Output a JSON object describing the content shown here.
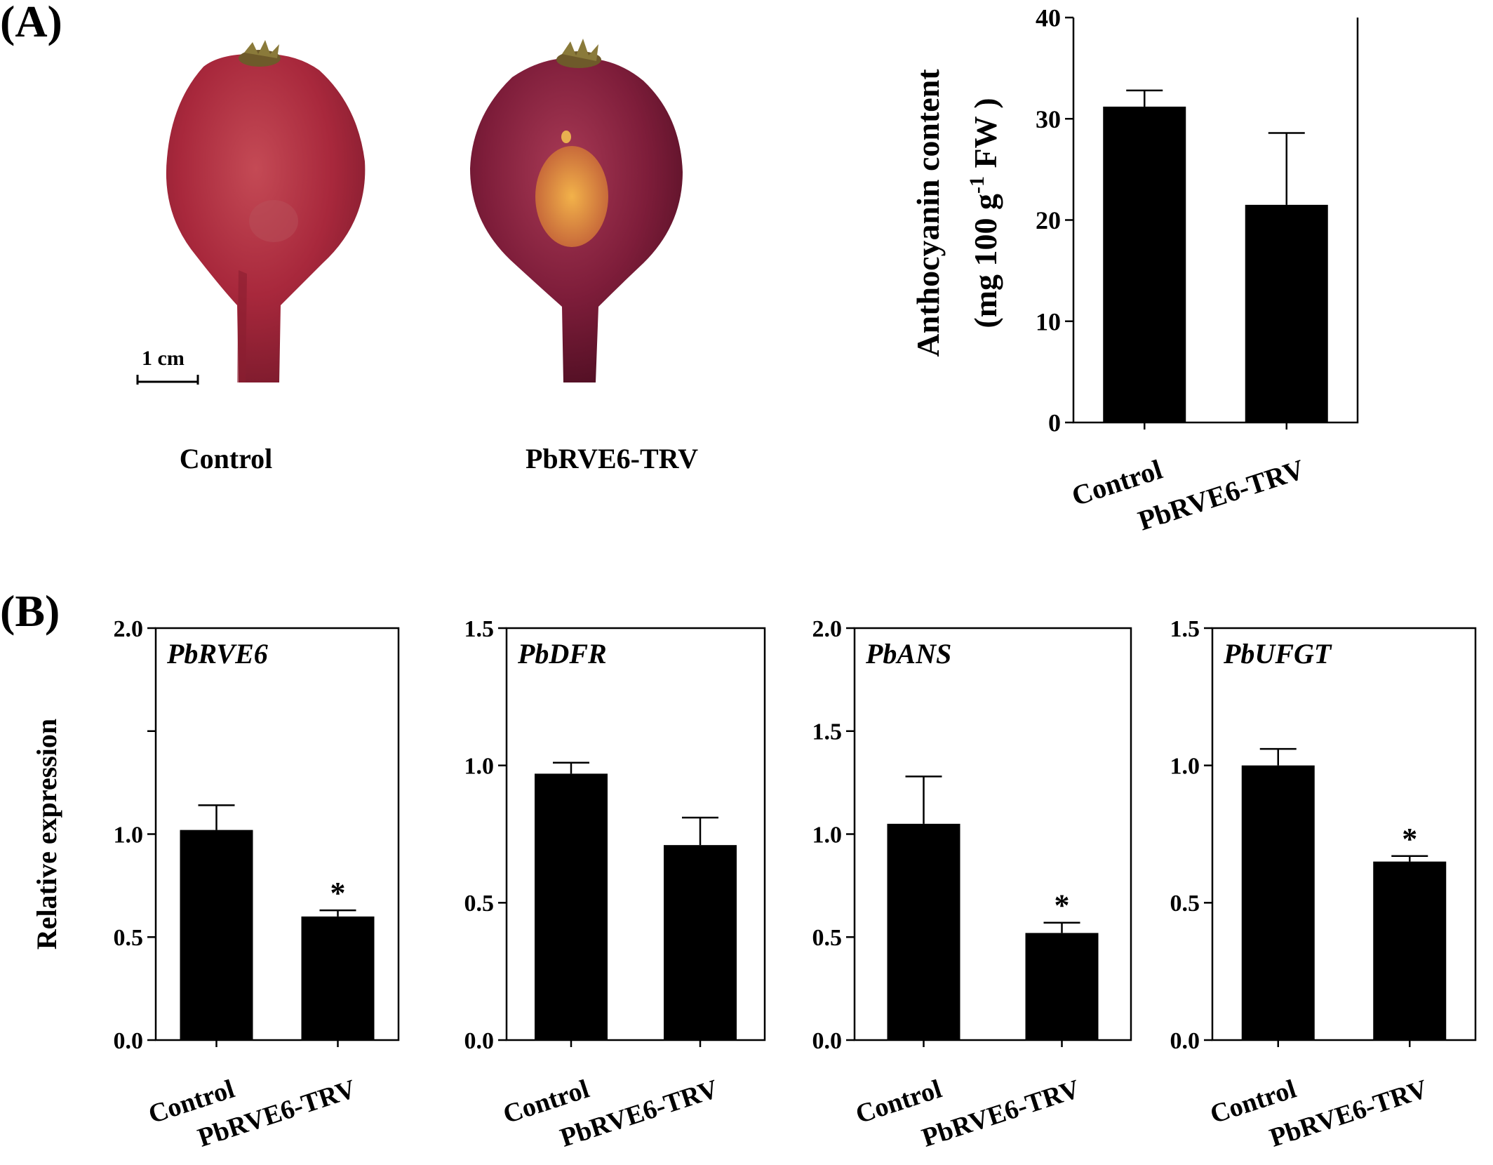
{
  "panelA": {
    "label": "(A)",
    "photos": [
      {
        "caption": "Control"
      },
      {
        "caption": "PbRVE6-TRV"
      }
    ],
    "scale_bar": "1 cm"
  },
  "panelB": {
    "label": "(B)"
  },
  "colors": {
    "bar": "#000000",
    "fruit": "#a8283c",
    "fruit_dark": "#6e1230",
    "spot": "#e8a040"
  },
  "chart_data": [
    {
      "id": "anthocyanin",
      "type": "bar",
      "categories": [
        "Control",
        "PbRVE6-TRV"
      ],
      "values": [
        31.2,
        21.5
      ],
      "errors": [
        1.6,
        7.1
      ],
      "ylabel_line1": "Anthocyanin content",
      "ylabel_line2": "(mg 100 g",
      "ylabel_sup": "-1",
      "ylabel_line2_end": " FW )",
      "ylim": [
        0,
        40
      ],
      "yticks": [
        0,
        10,
        20,
        30,
        40
      ],
      "tick_labels": [
        "0",
        "10",
        "20",
        "30",
        "40"
      ],
      "sig": [
        "",
        ""
      ]
    },
    {
      "id": "PbRVE6",
      "type": "bar",
      "title": "PbRVE6",
      "categories": [
        "Control",
        "PbRVE6-TRV"
      ],
      "values": [
        1.02,
        0.6
      ],
      "errors": [
        0.12,
        0.03
      ],
      "ylabel": "Relative expression",
      "ylim": [
        0,
        2.0
      ],
      "yticks": [
        0,
        0.5,
        1.0,
        1.5,
        2.0
      ],
      "tick_labels": [
        "0.0",
        "0.5",
        "1.0",
        "",
        "2.0"
      ],
      "sig": [
        "",
        "*"
      ]
    },
    {
      "id": "PbDFR",
      "type": "bar",
      "title": "PbDFR",
      "categories": [
        "Control",
        "PbRVE6-TRV"
      ],
      "values": [
        0.97,
        0.71
      ],
      "errors": [
        0.04,
        0.1
      ],
      "ylim": [
        0,
        1.5
      ],
      "yticks": [
        0,
        0.5,
        1.0,
        1.5
      ],
      "tick_labels": [
        "0.0",
        "0.5",
        "1.0",
        "1.5"
      ],
      "sig": [
        "",
        ""
      ]
    },
    {
      "id": "PbANS",
      "type": "bar",
      "title": "PbANS",
      "categories": [
        "Control",
        "PbRVE6-TRV"
      ],
      "values": [
        1.05,
        0.52
      ],
      "errors": [
        0.23,
        0.05
      ],
      "ylim": [
        0,
        2.0
      ],
      "yticks": [
        0,
        0.5,
        1.0,
        1.5,
        2.0
      ],
      "tick_labels": [
        "0.0",
        "0.5",
        "1.0",
        "1.5",
        "2.0"
      ],
      "sig": [
        "",
        "*"
      ]
    },
    {
      "id": "PbUFGT",
      "type": "bar",
      "title": "PbUFGT",
      "categories": [
        "Control",
        "PbRVE6-TRV"
      ],
      "values": [
        1.0,
        0.65
      ],
      "errors": [
        0.06,
        0.02
      ],
      "ylim": [
        0,
        1.5
      ],
      "yticks": [
        0,
        0.5,
        1.0,
        1.5
      ],
      "tick_labels": [
        "0.0",
        "0.5",
        "1.0",
        "1.5"
      ],
      "sig": [
        "",
        "*"
      ]
    }
  ]
}
